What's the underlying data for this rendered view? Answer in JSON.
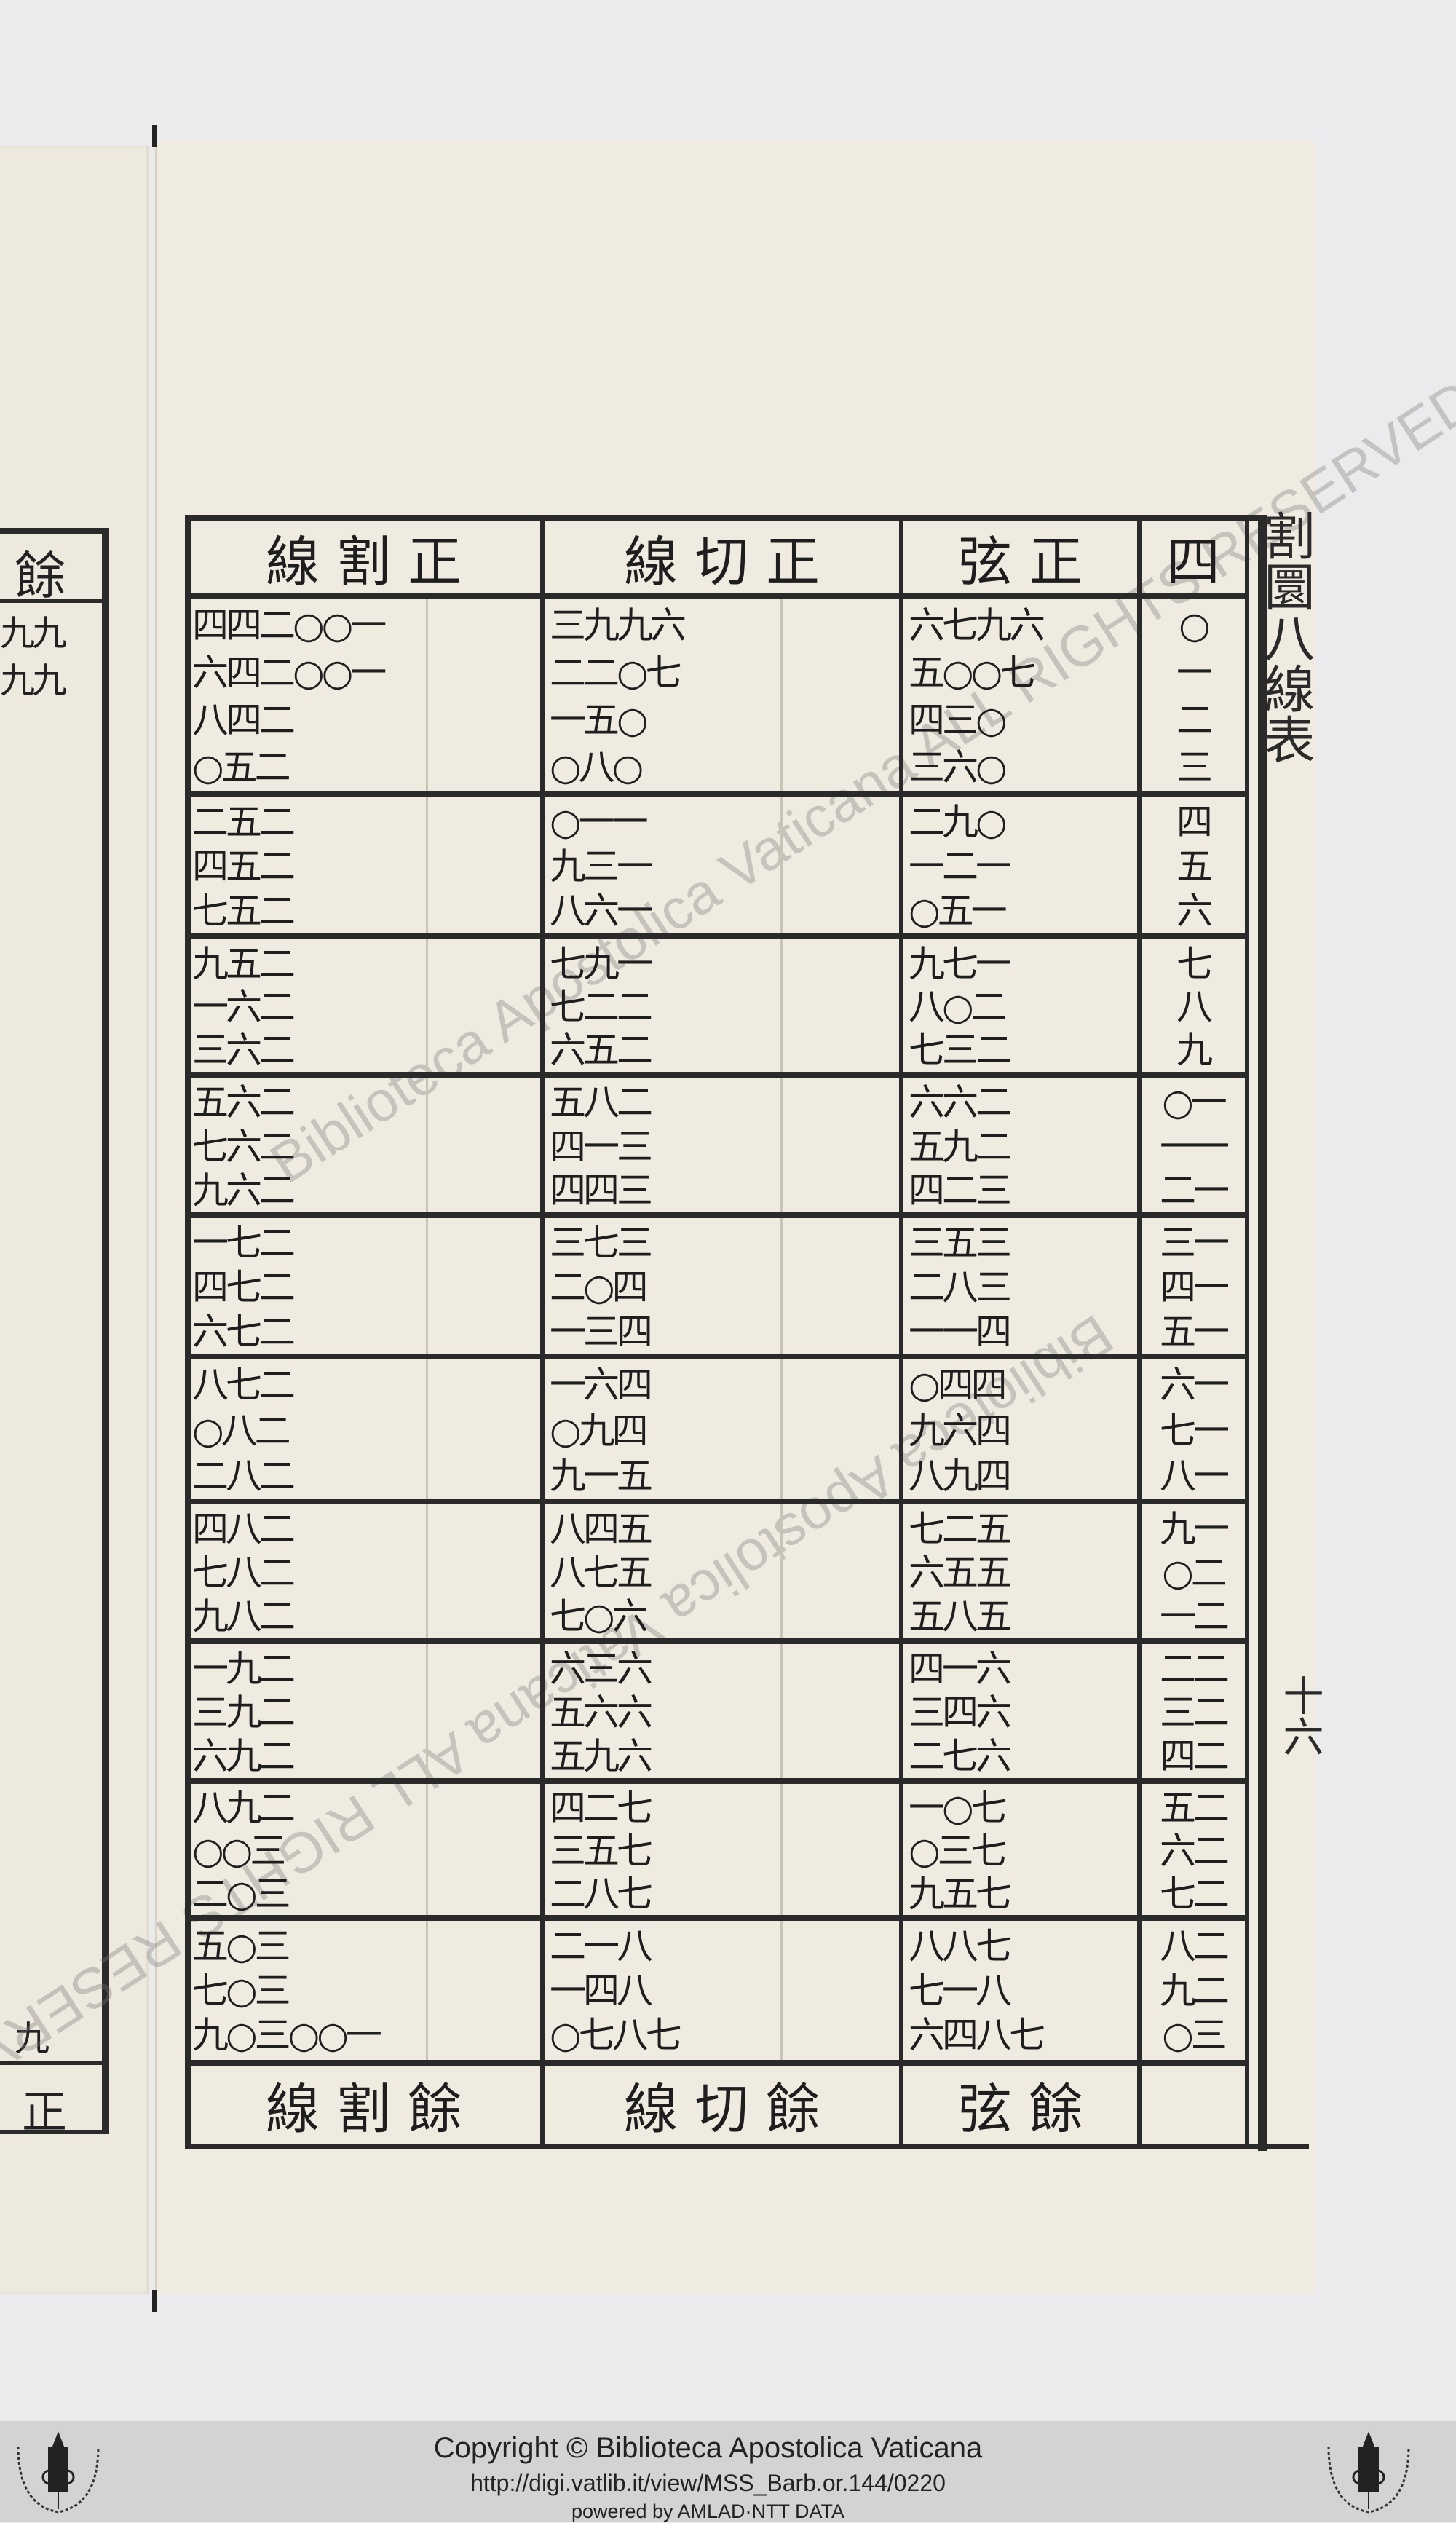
{
  "margin_title": "割圜八線表",
  "page_number": "十六",
  "watermarks": [
    "Biblioteca Apostolica Vaticana ALL RIGHTS RESERVED",
    "Biblioteca Apostolica Vaticana ALL RIGHTS RESERVED"
  ],
  "left_page": {
    "header": "餘",
    "rows": [
      "九九",
      "九九"
    ],
    "bottom_value": "九",
    "footer": "正"
  },
  "table": {
    "headers": [
      "線 割 正",
      "線 切 正",
      "弦 正",
      "四"
    ],
    "footers": [
      "線 割 餘",
      "線 切 餘",
      "弦 餘",
      ""
    ],
    "blocks": [
      {
        "secant": [
          "四四二○○一",
          "六四二○○一",
          "八四二",
          "○五二"
        ],
        "tangent": [
          "三九九六",
          "二二○七",
          "一五○",
          "○八○"
        ],
        "sine": [
          "六七九六",
          "五○○七",
          "四三○",
          "三六○"
        ],
        "minute": [
          "○",
          "一",
          "二",
          "三"
        ]
      },
      {
        "secant": [
          "二五二",
          "四五二",
          "七五二"
        ],
        "tangent": [
          "○一一",
          "九三一",
          "八六一"
        ],
        "sine": [
          "二九○",
          "一二一",
          "○五一"
        ],
        "minute": [
          "四",
          "五",
          "六"
        ]
      },
      {
        "secant": [
          "九五二",
          "一六二",
          "三六二"
        ],
        "tangent": [
          "七九一",
          "七二二",
          "六五二"
        ],
        "sine": [
          "九七一",
          "八○二",
          "七三二"
        ],
        "minute": [
          "七",
          "八",
          "九"
        ]
      },
      {
        "secant": [
          "五六二",
          "七六二",
          "九六二"
        ],
        "tangent": [
          "五八二",
          "四一三",
          "四四三"
        ],
        "sine": [
          "六六二",
          "五九二",
          "四二三"
        ],
        "minute": [
          "○一",
          "一一",
          "二一"
        ]
      },
      {
        "secant": [
          "一七二",
          "四七二",
          "六七二"
        ],
        "tangent": [
          "三七三",
          "二○四",
          "一三四"
        ],
        "sine": [
          "三五三",
          "二八三",
          "一一四"
        ],
        "minute": [
          "三一",
          "四一",
          "五一"
        ]
      },
      {
        "secant": [
          "八七二",
          "○八二",
          "二八二"
        ],
        "tangent": [
          "一六四",
          "○九四",
          "九一五"
        ],
        "sine": [
          "○四四",
          "九六四",
          "八九四"
        ],
        "minute": [
          "六一",
          "七一",
          "八一"
        ]
      },
      {
        "secant": [
          "四八二",
          "七八二",
          "九八二"
        ],
        "tangent": [
          "八四五",
          "八七五",
          "七○六"
        ],
        "sine": [
          "七二五",
          "六五五",
          "五八五"
        ],
        "minute": [
          "九一",
          "○二",
          "一二"
        ]
      },
      {
        "secant": [
          "一九二",
          "三九二",
          "六九二"
        ],
        "tangent": [
          "六三六",
          "五六六",
          "五九六"
        ],
        "sine": [
          "四一六",
          "三四六",
          "二七六"
        ],
        "minute": [
          "二二",
          "三二",
          "四二"
        ]
      },
      {
        "secant": [
          "八九二",
          "○○三",
          "二○三"
        ],
        "tangent": [
          "四二七",
          "三五七",
          "二八七"
        ],
        "sine": [
          "一○七",
          "○三七",
          "九五七"
        ],
        "minute": [
          "五二",
          "六二",
          "七二"
        ]
      },
      {
        "secant": [
          "五○三",
          "七○三",
          "九○三○○一"
        ],
        "tangent": [
          "二一八",
          "一四八",
          "○七八七"
        ],
        "sine": [
          "八八七",
          "七一八",
          "六四八七"
        ],
        "minute": [
          "八二",
          "九二",
          "○三"
        ]
      }
    ]
  },
  "footer": {
    "copyright": "Copyright © Biblioteca Apostolica Vaticana",
    "url": "http://digi.vatlib.it/view/MSS_Barb.or.144/0220",
    "powered": "powered by AMLAD·NTT DATA",
    "logo_text": "BIBLIOTECA APOSTOLICA VATICANA"
  },
  "colors": {
    "paper": "#f0ebe0",
    "ink": "#1e1e1e",
    "footer_bar": "#d3d3d3"
  }
}
